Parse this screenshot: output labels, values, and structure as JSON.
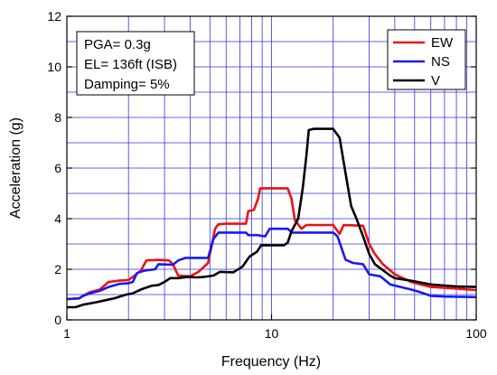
{
  "chart_data": {
    "type": "line",
    "xscale": "log",
    "xlim": [
      1,
      100
    ],
    "ylim": [
      0,
      12
    ],
    "xticks": [
      1,
      10,
      100
    ],
    "yticks": [
      0,
      2,
      4,
      6,
      8,
      10,
      12
    ],
    "xtick_labels": [
      "1",
      "10",
      "100"
    ],
    "ytick_labels": [
      "0",
      "2",
      "4",
      "6",
      "8",
      "10",
      "12"
    ],
    "xlabel": "Frequency (Hz)",
    "ylabel": "Acceleration (g)",
    "grid": true,
    "legend_position": "top-right",
    "annotation_lines": [
      "PGA= 0.3g",
      "EL= 136ft (ISB)",
      "Damping= 5%"
    ],
    "series": [
      {
        "name": "EW",
        "color": "#ee1111",
        "points": [
          [
            1,
            0.82
          ],
          [
            1.15,
            0.85
          ],
          [
            1.2,
            0.95
          ],
          [
            1.3,
            1.1
          ],
          [
            1.45,
            1.2
          ],
          [
            1.6,
            1.5
          ],
          [
            1.8,
            1.55
          ],
          [
            2.0,
            1.58
          ],
          [
            2.1,
            1.7
          ],
          [
            2.3,
            1.95
          ],
          [
            2.45,
            2.35
          ],
          [
            2.8,
            2.37
          ],
          [
            3.15,
            2.35
          ],
          [
            3.3,
            2.2
          ],
          [
            3.5,
            1.75
          ],
          [
            4.0,
            1.72
          ],
          [
            4.4,
            1.9
          ],
          [
            4.9,
            2.25
          ],
          [
            5.3,
            3.6
          ],
          [
            5.5,
            3.78
          ],
          [
            6.0,
            3.8
          ],
          [
            7.5,
            3.8
          ],
          [
            7.7,
            4.3
          ],
          [
            8.2,
            4.35
          ],
          [
            8.6,
            4.8
          ],
          [
            8.8,
            5.2
          ],
          [
            10,
            5.2
          ],
          [
            12,
            5.2
          ],
          [
            12.5,
            4.8
          ],
          [
            13,
            3.95
          ],
          [
            14,
            3.6
          ],
          [
            14.8,
            3.75
          ],
          [
            16,
            3.75
          ],
          [
            20,
            3.75
          ],
          [
            21.5,
            3.4
          ],
          [
            22.5,
            3.75
          ],
          [
            28,
            3.72
          ],
          [
            30,
            3.0
          ],
          [
            32,
            2.6
          ],
          [
            35,
            2.2
          ],
          [
            40,
            1.8
          ],
          [
            48,
            1.5
          ],
          [
            60,
            1.3
          ],
          [
            75,
            1.25
          ],
          [
            100,
            1.18
          ]
        ]
      },
      {
        "name": "NS",
        "color": "#1a1aee",
        "points": [
          [
            1,
            0.82
          ],
          [
            1.15,
            0.85
          ],
          [
            1.2,
            0.95
          ],
          [
            1.3,
            1.05
          ],
          [
            1.45,
            1.15
          ],
          [
            1.6,
            1.3
          ],
          [
            1.8,
            1.42
          ],
          [
            2.0,
            1.45
          ],
          [
            2.1,
            1.5
          ],
          [
            2.2,
            1.85
          ],
          [
            2.4,
            1.95
          ],
          [
            2.7,
            2.0
          ],
          [
            2.8,
            2.2
          ],
          [
            3.3,
            2.18
          ],
          [
            3.5,
            2.35
          ],
          [
            3.8,
            2.45
          ],
          [
            4.9,
            2.45
          ],
          [
            5.2,
            3.2
          ],
          [
            5.5,
            3.45
          ],
          [
            6.0,
            3.45
          ],
          [
            7.5,
            3.45
          ],
          [
            7.7,
            3.35
          ],
          [
            8.5,
            3.35
          ],
          [
            9.3,
            3.3
          ],
          [
            9.8,
            3.6
          ],
          [
            12,
            3.6
          ],
          [
            12.6,
            3.45
          ],
          [
            20,
            3.45
          ],
          [
            21,
            3.3
          ],
          [
            23,
            2.38
          ],
          [
            25,
            2.25
          ],
          [
            28,
            2.2
          ],
          [
            30,
            1.8
          ],
          [
            34,
            1.72
          ],
          [
            38,
            1.4
          ],
          [
            48,
            1.2
          ],
          [
            52,
            1.12
          ],
          [
            60,
            0.95
          ],
          [
            70,
            0.92
          ],
          [
            100,
            0.9
          ]
        ]
      },
      {
        "name": "V",
        "color": "#000000",
        "points": [
          [
            1,
            0.5
          ],
          [
            1.1,
            0.5
          ],
          [
            1.2,
            0.6
          ],
          [
            1.4,
            0.7
          ],
          [
            1.7,
            0.85
          ],
          [
            1.95,
            1.0
          ],
          [
            2.1,
            1.05
          ],
          [
            2.3,
            1.2
          ],
          [
            2.6,
            1.35
          ],
          [
            2.8,
            1.38
          ],
          [
            3.0,
            1.5
          ],
          [
            3.2,
            1.65
          ],
          [
            3.5,
            1.65
          ],
          [
            3.9,
            1.7
          ],
          [
            4.3,
            1.68
          ],
          [
            4.7,
            1.7
          ],
          [
            5.2,
            1.75
          ],
          [
            5.6,
            1.9
          ],
          [
            6.5,
            1.88
          ],
          [
            7.2,
            2.1
          ],
          [
            7.8,
            2.5
          ],
          [
            8.5,
            2.7
          ],
          [
            8.9,
            2.95
          ],
          [
            11.5,
            2.95
          ],
          [
            12,
            3.05
          ],
          [
            12.5,
            3.5
          ],
          [
            13.5,
            4.0
          ],
          [
            14.2,
            5.2
          ],
          [
            14.8,
            6.5
          ],
          [
            15.2,
            7.5
          ],
          [
            16,
            7.55
          ],
          [
            20,
            7.55
          ],
          [
            21.5,
            7.2
          ],
          [
            23,
            5.8
          ],
          [
            24.5,
            4.5
          ],
          [
            26,
            4.0
          ],
          [
            28,
            3.3
          ],
          [
            30,
            2.6
          ],
          [
            32,
            2.2
          ],
          [
            38,
            1.75
          ],
          [
            40,
            1.65
          ],
          [
            48,
            1.55
          ],
          [
            60,
            1.4
          ],
          [
            80,
            1.32
          ],
          [
            100,
            1.3
          ]
        ]
      }
    ]
  }
}
